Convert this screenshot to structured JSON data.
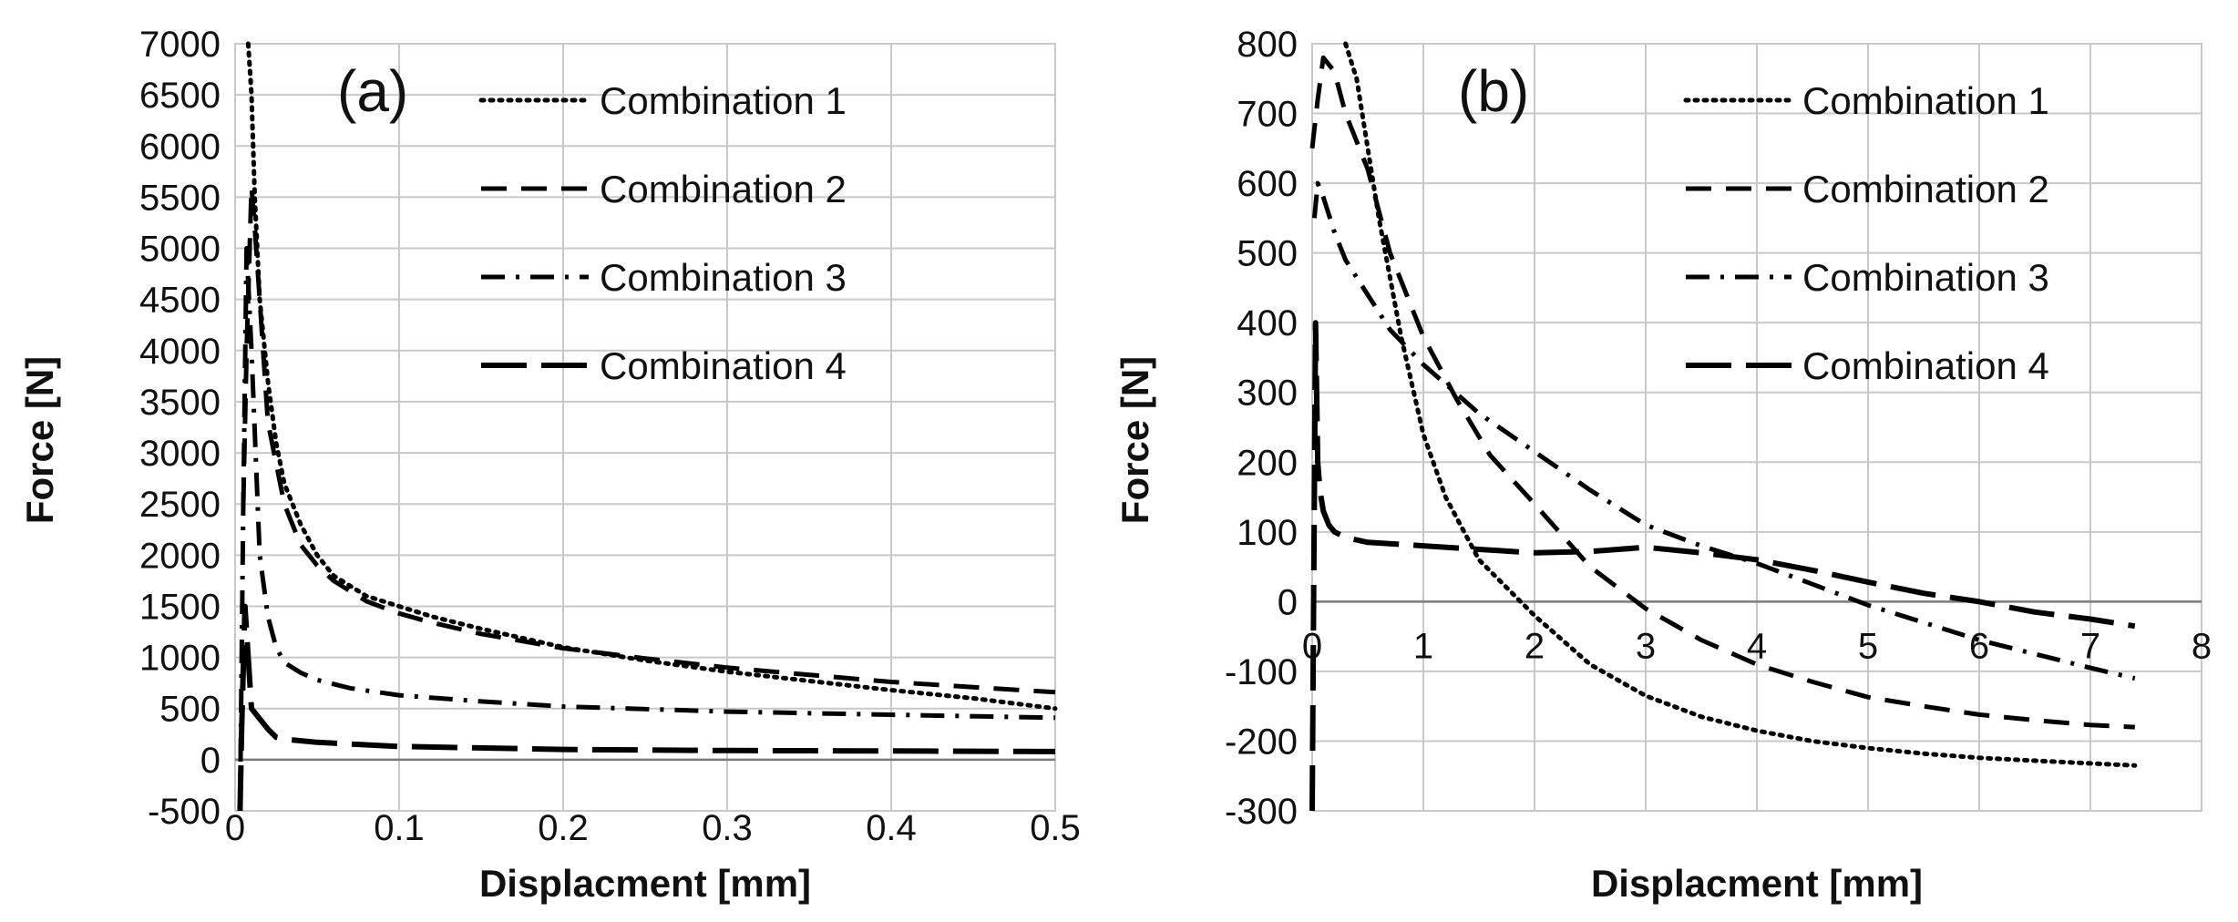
{
  "chart_data": [
    {
      "type": "line",
      "panel_label": "(a)",
      "xlabel": "Displacment [mm]",
      "ylabel": "Force [N]",
      "xlim": [
        0,
        0.5
      ],
      "ylim": [
        -500,
        7000
      ],
      "xticks": [
        0,
        0.1,
        0.2,
        0.3,
        0.4,
        0.5
      ],
      "xtick_labels": [
        "0",
        "0.1",
        "0.2",
        "0.3",
        "0.4",
        "0.5"
      ],
      "yticks": [
        -500,
        0,
        500,
        1000,
        1500,
        2000,
        2500,
        3000,
        3500,
        4000,
        4500,
        5000,
        5500,
        6000,
        6500,
        7000
      ],
      "ytick_labels": [
        "-500",
        "0",
        "500",
        "1000",
        "1500",
        "2000",
        "2500",
        "3000",
        "3500",
        "4000",
        "4500",
        "5000",
        "5500",
        "6000",
        "6500",
        "7000"
      ],
      "grid": true,
      "legend_position": "top-right",
      "series": [
        {
          "name": "Combination 1",
          "style": "dotted",
          "x": [
            0.008,
            0.01,
            0.012,
            0.015,
            0.02,
            0.025,
            0.03,
            0.04,
            0.05,
            0.06,
            0.08,
            0.1,
            0.12,
            0.15,
            0.2,
            0.25,
            0.3,
            0.35,
            0.4,
            0.45,
            0.5
          ],
          "y": [
            7000,
            6500,
            5500,
            4500,
            3700,
            3100,
            2700,
            2300,
            2000,
            1800,
            1600,
            1500,
            1400,
            1280,
            1100,
            970,
            860,
            770,
            680,
            600,
            500
          ]
        },
        {
          "name": "Combination 2",
          "style": "dashed",
          "x": [
            0.005,
            0.007,
            0.01,
            0.012,
            0.015,
            0.02,
            0.025,
            0.03,
            0.04,
            0.05,
            0.06,
            0.08,
            0.1,
            0.12,
            0.15,
            0.2,
            0.25,
            0.3,
            0.35,
            0.4,
            0.45,
            0.5
          ],
          "y": [
            2500,
            4000,
            5600,
            5200,
            4500,
            3300,
            2900,
            2500,
            2100,
            1900,
            1750,
            1550,
            1430,
            1340,
            1230,
            1090,
            990,
            900,
            830,
            760,
            710,
            660
          ]
        },
        {
          "name": "Combination 3",
          "style": "dash-dot",
          "x": [
            0.003,
            0.005,
            0.007,
            0.01,
            0.015,
            0.02,
            0.025,
            0.03,
            0.04,
            0.05,
            0.07,
            0.1,
            0.15,
            0.2,
            0.3,
            0.4,
            0.5
          ],
          "y": [
            -500,
            2500,
            5000,
            4000,
            2000,
            1400,
            1100,
            950,
            850,
            780,
            700,
            630,
            570,
            520,
            470,
            440,
            410
          ]
        },
        {
          "name": "Combination 4",
          "style": "long-dash",
          "x": [
            0.003,
            0.004,
            0.006,
            0.01,
            0.015,
            0.02,
            0.025,
            0.03,
            0.05,
            0.1,
            0.2,
            0.3,
            0.4,
            0.5
          ],
          "y": [
            -500,
            300,
            1500,
            500,
            400,
            300,
            220,
            200,
            170,
            130,
            100,
            90,
            85,
            80
          ]
        }
      ]
    },
    {
      "type": "line",
      "panel_label": "(b)",
      "xlabel": "Displacment [mm]",
      "ylabel": "Force [N]",
      "xlim": [
        0,
        8
      ],
      "ylim": [
        -300,
        800
      ],
      "xticks": [
        0,
        1,
        2,
        3,
        4,
        5,
        6,
        7,
        8
      ],
      "xtick_labels": [
        "0",
        "1",
        "2",
        "3",
        "4",
        "5",
        "6",
        "7",
        "8"
      ],
      "yticks": [
        -300,
        -200,
        -100,
        0,
        100,
        200,
        300,
        400,
        500,
        600,
        700,
        800
      ],
      "ytick_labels": [
        "-300",
        "-200",
        "-100",
        "0",
        "100",
        "200",
        "300",
        "400",
        "500",
        "600",
        "700",
        "800"
      ],
      "grid": true,
      "legend_position": "top-right",
      "series": [
        {
          "name": "Combination 1",
          "style": "dotted",
          "x": [
            0.3,
            0.4,
            0.5,
            0.6,
            0.8,
            1.0,
            1.2,
            1.5,
            2.0,
            2.5,
            3.0,
            3.5,
            4.0,
            4.5,
            5.0,
            5.5,
            6.0,
            6.5,
            7.0,
            7.4
          ],
          "y": [
            800,
            750,
            650,
            550,
            380,
            240,
            150,
            60,
            -20,
            -90,
            -135,
            -165,
            -185,
            -200,
            -210,
            -218,
            -224,
            -228,
            -232,
            -235
          ]
        },
        {
          "name": "Combination 2",
          "style": "dashed",
          "x": [
            0.0,
            0.05,
            0.1,
            0.2,
            0.3,
            0.5,
            0.7,
            1.0,
            1.3,
            1.6,
            2.0,
            2.5,
            3.0,
            3.5,
            4.0,
            4.5,
            5.0,
            5.5,
            6.0,
            6.5,
            7.0,
            7.4
          ],
          "y": [
            650,
            720,
            780,
            760,
            700,
            620,
            500,
            380,
            290,
            210,
            140,
            50,
            -10,
            -55,
            -90,
            -115,
            -137,
            -150,
            -162,
            -170,
            -177,
            -180
          ]
        },
        {
          "name": "Combination 3",
          "style": "dash-dot",
          "x": [
            0.02,
            0.05,
            0.1,
            0.2,
            0.3,
            0.5,
            0.7,
            1.0,
            1.5,
            2.0,
            2.5,
            3.0,
            3.5,
            4.0,
            4.5,
            5.0,
            5.5,
            6.0,
            6.5,
            7.0,
            7.4
          ],
          "y": [
            550,
            600,
            580,
            530,
            490,
            440,
            390,
            340,
            270,
            215,
            160,
            110,
            80,
            55,
            25,
            -5,
            -30,
            -55,
            -75,
            -95,
            -110
          ]
        },
        {
          "name": "Combination 4",
          "style": "long-dash",
          "x": [
            0.0,
            0.03,
            0.05,
            0.07,
            0.1,
            0.15,
            0.2,
            0.3,
            0.5,
            1.0,
            1.5,
            2.0,
            2.5,
            3.0,
            3.5,
            4.0,
            4.5,
            5.0,
            5.5,
            6.0,
            6.5,
            7.0,
            7.4
          ],
          "y": [
            -300,
            400,
            200,
            160,
            130,
            110,
            100,
            92,
            85,
            80,
            75,
            70,
            72,
            78,
            70,
            60,
            45,
            28,
            12,
            0,
            -15,
            -25,
            -35
          ]
        }
      ]
    }
  ]
}
